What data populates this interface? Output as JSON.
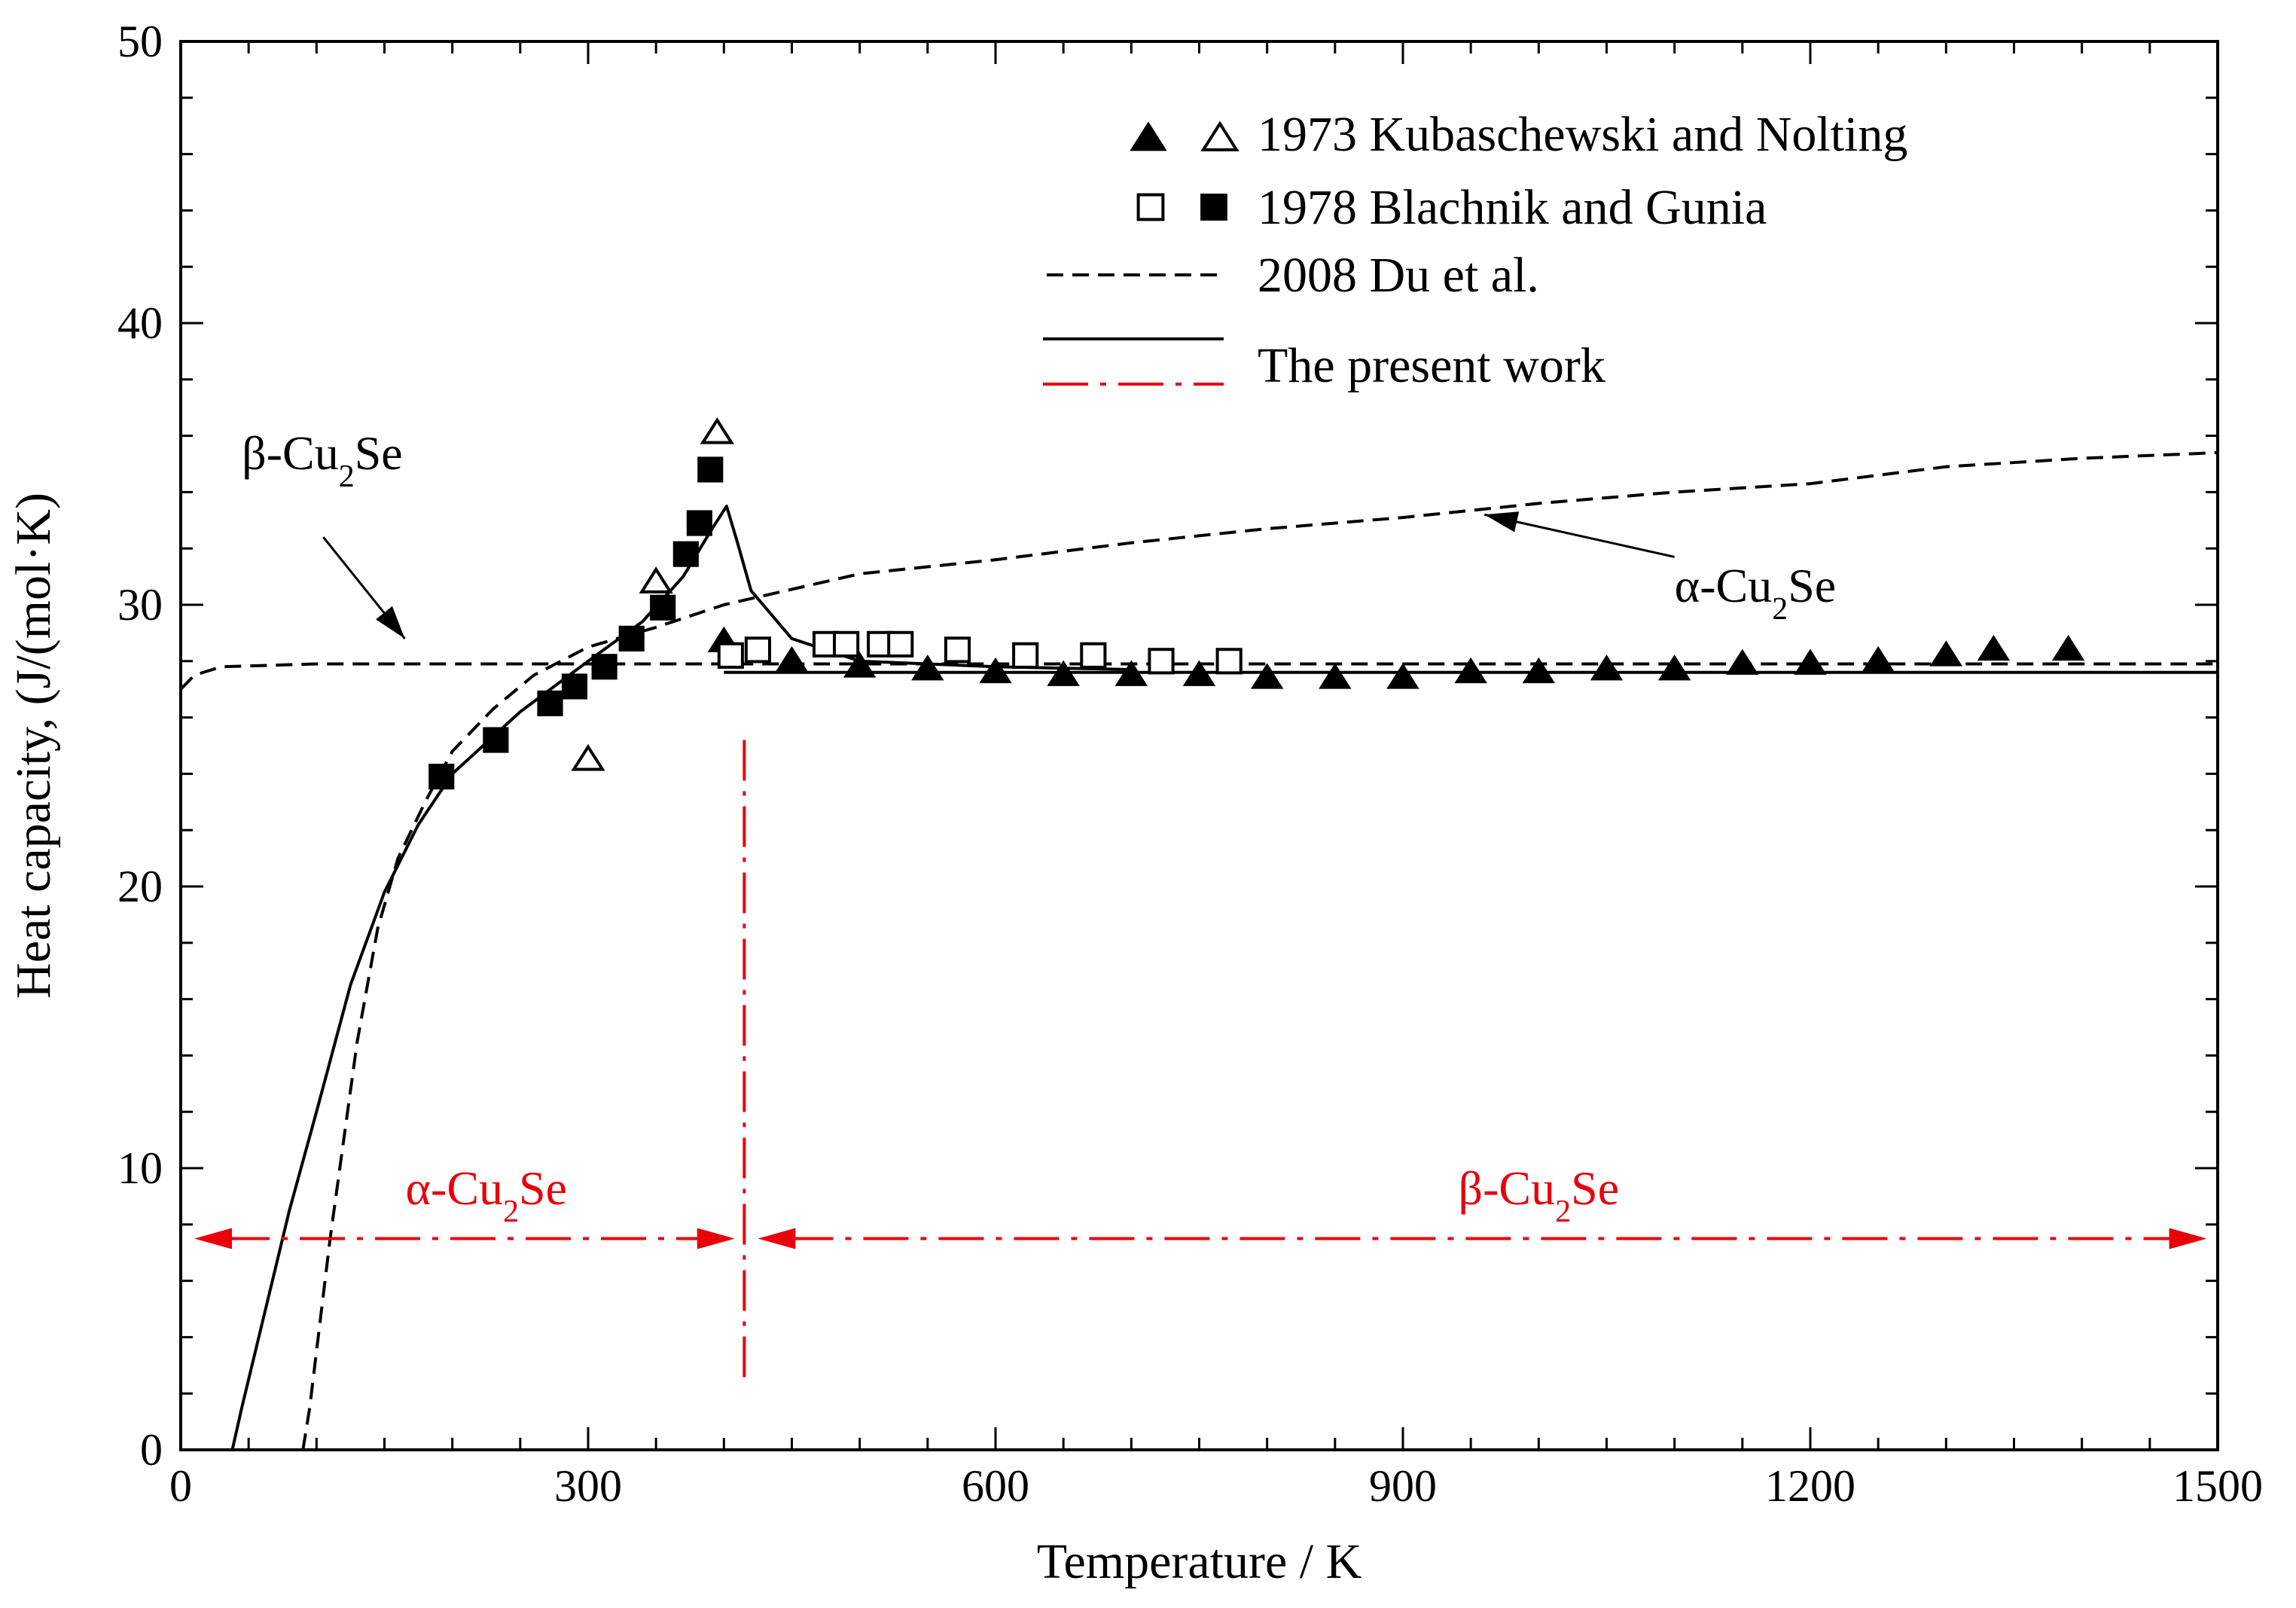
{
  "chart_data": {
    "type": "scatter",
    "title": "",
    "xlabel": "Temperature / K",
    "ylabel": "Heat capacity, (J/(mol·K)",
    "xlim": [
      0,
      1500
    ],
    "ylim": [
      0,
      50
    ],
    "xticks": [
      0,
      300,
      600,
      900,
      1200,
      1500
    ],
    "yticks": [
      0,
      10,
      20,
      30,
      40,
      50
    ],
    "grid": false,
    "legend_position": "top-right",
    "legend": [
      {
        "key": "kub",
        "label": "1973 Kubaschewski and Nolting"
      },
      {
        "key": "bla",
        "label": "1978 Blachnik and Gunia"
      },
      {
        "key": "du",
        "label": "2008 Du et al."
      },
      {
        "key": "present",
        "label": "The present work"
      }
    ],
    "series": [
      {
        "name": "1973 Kubaschewski and Nolting (α, open)",
        "marker": "triangle-open",
        "points": [
          [
            300,
            24.5
          ],
          [
            350,
            30.8
          ],
          [
            395,
            36.1
          ]
        ]
      },
      {
        "name": "1973 Kubaschewski and Nolting (β, filled)",
        "marker": "triangle-filled",
        "points": [
          [
            400,
            28.7
          ],
          [
            450,
            28.0
          ],
          [
            500,
            27.8
          ],
          [
            550,
            27.7
          ],
          [
            600,
            27.6
          ],
          [
            650,
            27.5
          ],
          [
            700,
            27.5
          ],
          [
            750,
            27.5
          ],
          [
            800,
            27.4
          ],
          [
            850,
            27.4
          ],
          [
            900,
            27.4
          ],
          [
            950,
            27.6
          ],
          [
            1000,
            27.6
          ],
          [
            1050,
            27.7
          ],
          [
            1100,
            27.7
          ],
          [
            1150,
            27.9
          ],
          [
            1200,
            27.9
          ],
          [
            1250,
            28.0
          ],
          [
            1300,
            28.2
          ],
          [
            1335,
            28.4
          ],
          [
            1390,
            28.4
          ]
        ]
      },
      {
        "name": "1978 Blachnik and Gunia (α, filled)",
        "marker": "square-filled",
        "points": [
          [
            192,
            23.9
          ],
          [
            232,
            25.2
          ],
          [
            272,
            26.5
          ],
          [
            290,
            27.1
          ],
          [
            312,
            27.8
          ],
          [
            332,
            28.8
          ],
          [
            355,
            29.9
          ],
          [
            372,
            31.8
          ],
          [
            382,
            32.9
          ],
          [
            390,
            34.8
          ]
        ]
      },
      {
        "name": "1978 Blachnik and Gunia (β, open)",
        "marker": "square-open",
        "points": [
          [
            405,
            28.2
          ],
          [
            425,
            28.4
          ],
          [
            475,
            28.6
          ],
          [
            490,
            28.6
          ],
          [
            515,
            28.6
          ],
          [
            530,
            28.6
          ],
          [
            572,
            28.4
          ],
          [
            622,
            28.2
          ],
          [
            672,
            28.2
          ],
          [
            722,
            28.0
          ],
          [
            772,
            28.0
          ]
        ]
      },
      {
        "name": "2008 Du et al. — β-Cu2Se",
        "style": "dashed",
        "points": [
          [
            0,
            27.0
          ],
          [
            10,
            27.5
          ],
          [
            30,
            27.8
          ],
          [
            100,
            27.9
          ],
          [
            400,
            27.9
          ],
          [
            1500,
            27.9
          ]
        ]
      },
      {
        "name": "2008 Du et al. — α-Cu2Se",
        "style": "dashed",
        "points": [
          [
            90,
            0
          ],
          [
            95,
            1.5
          ],
          [
            100,
            3.5
          ],
          [
            110,
            7.5
          ],
          [
            120,
            11.0
          ],
          [
            130,
            14.5
          ],
          [
            145,
            18.5
          ],
          [
            160,
            21.0
          ],
          [
            180,
            23.0
          ],
          [
            200,
            24.8
          ],
          [
            230,
            26.3
          ],
          [
            260,
            27.5
          ],
          [
            300,
            28.5
          ],
          [
            350,
            29.2
          ],
          [
            400,
            30.0
          ],
          [
            500,
            31.1
          ],
          [
            600,
            31.6
          ],
          [
            700,
            32.2
          ],
          [
            800,
            32.7
          ],
          [
            900,
            33.1
          ],
          [
            1000,
            33.6
          ],
          [
            1100,
            34.0
          ],
          [
            1200,
            34.3
          ],
          [
            1300,
            34.9
          ],
          [
            1400,
            35.2
          ],
          [
            1500,
            35.4
          ]
        ]
      },
      {
        "name": "The present work — α-Cu2Se",
        "style": "solid",
        "points": [
          [
            38,
            0
          ],
          [
            45,
            1.5
          ],
          [
            60,
            4.5
          ],
          [
            80,
            8.5
          ],
          [
            100,
            12.0
          ],
          [
            125,
            16.5
          ],
          [
            150,
            19.8
          ],
          [
            175,
            22.2
          ],
          [
            200,
            24.0
          ],
          [
            250,
            26.2
          ],
          [
            300,
            28.0
          ],
          [
            340,
            29.4
          ],
          [
            370,
            31.0
          ],
          [
            390,
            32.6
          ],
          [
            402,
            33.5
          ],
          [
            410,
            32.2
          ],
          [
            420,
            30.5
          ],
          [
            450,
            28.8
          ],
          [
            500,
            28.0
          ],
          [
            600,
            27.8
          ],
          [
            700,
            27.7
          ]
        ]
      },
      {
        "name": "The present work — β-Cu2Se",
        "style": "solid",
        "points": [
          [
            400,
            27.6
          ],
          [
            1500,
            27.6
          ]
        ]
      }
    ],
    "transition": {
      "x": 415,
      "y_from": 2.5,
      "y_to": 25.2
    },
    "phase_arrows": [
      {
        "label": "α-Cu2Se",
        "from": 10,
        "to": 408,
        "y": 7.5,
        "label_x": 225,
        "label_y": 9.3
      },
      {
        "label": "β-Cu2Se",
        "from": 425,
        "to": 1492,
        "y": 7.5,
        "label_x": 1000,
        "label_y": 9.3
      }
    ],
    "annotations": [
      {
        "label": "β-Cu2Se",
        "text_x": 45,
        "text_y": 35.4,
        "arrow_from": [
          105,
          32.4
        ],
        "arrow_to": [
          165,
          28.8
        ]
      },
      {
        "label": "α-Cu2Se",
        "text_x": 1100,
        "text_y": 30.7,
        "arrow_from": [
          1100,
          31.7
        ],
        "arrow_to": [
          960,
          33.2
        ]
      }
    ]
  }
}
